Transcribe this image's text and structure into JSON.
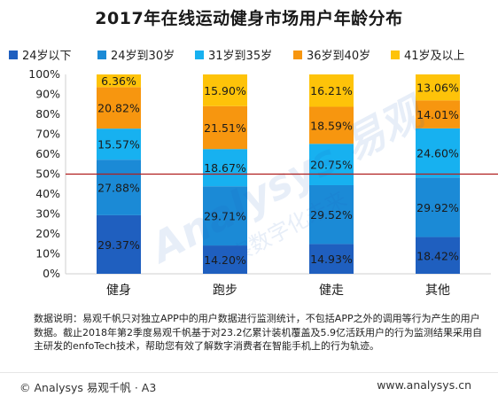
{
  "chart_data": {
    "type": "stacked-bar",
    "title": "2017年在线运动健身市场用户年龄分布",
    "categories": [
      "健身",
      "跑步",
      "健走",
      "其他"
    ],
    "series": [
      {
        "name": "24岁以下",
        "color": "#1f5fbf",
        "values": [
          29.37,
          14.2,
          14.93,
          18.42
        ]
      },
      {
        "name": "24岁到30岁",
        "color": "#1b8ad6",
        "values": [
          27.88,
          29.71,
          29.52,
          29.92
        ]
      },
      {
        "name": "31岁到35岁",
        "color": "#17b1f0",
        "values": [
          15.57,
          18.67,
          20.75,
          24.6
        ]
      },
      {
        "name": "36岁到40岁",
        "color": "#f7960f",
        "values": [
          20.82,
          21.51,
          18.59,
          14.01
        ]
      },
      {
        "name": "41岁及以上",
        "color": "#fec309",
        "values": [
          6.36,
          15.9,
          16.21,
          13.06
        ]
      }
    ],
    "ylim": [
      0,
      100
    ],
    "yticks": [
      "0%",
      "10%",
      "20%",
      "30%",
      "40%",
      "50%",
      "60%",
      "70%",
      "80%",
      "90%",
      "100%"
    ],
    "reference_line": {
      "value": 50,
      "color": "#b01e1e"
    },
    "legend_position": "top",
    "grid": false,
    "value_suffix": "%"
  },
  "note": "数据说明：易观千帆只对独立APP中的用户数据进行监测统计，不包括APP之外的调用等行为产生的用户数据。截止2018年第2季度易观千帆基于对23.2亿累计装机覆盖及5.9亿活跃用户的行为监测结果采用自主研发的enfoTech技术，帮助您有效了解数字消费者在智能手机上的行为轨迹。",
  "footer": {
    "left": "© Analysys 易观千帆 · A3",
    "right": "www.analysys.cn"
  },
  "watermark": {
    "logo_text": "Analysys 易观",
    "slogan": "洞察数字化未来"
  }
}
